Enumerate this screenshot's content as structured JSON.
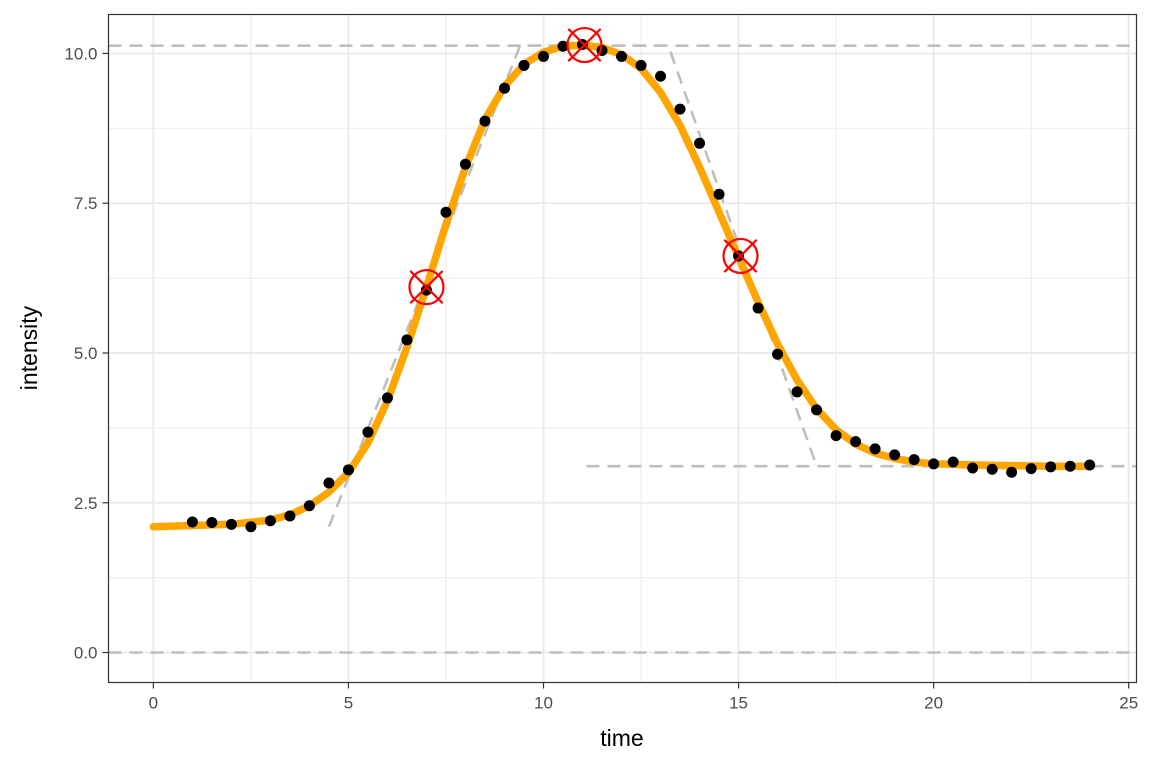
{
  "chart_data": {
    "type": "scatter",
    "title": "",
    "xlabel": "time",
    "ylabel": "intensity",
    "xlim": [
      -1.15,
      25.2
    ],
    "ylim": [
      -0.5,
      10.65
    ],
    "x_ticks": [
      0,
      5,
      10,
      15,
      20,
      25
    ],
    "x_tick_labels": [
      "0",
      "5",
      "10",
      "15",
      "20",
      "25"
    ],
    "y_ticks": [
      0,
      2.5,
      5,
      7.5,
      10
    ],
    "y_tick_labels": [
      "0.0",
      "2.5",
      "5.0",
      "7.5",
      "10.0"
    ],
    "grid": true,
    "legend": "none",
    "colors": {
      "points": "#000000",
      "fit": "#FFA500",
      "guides": "#BEBEBE",
      "markers": "#FF0000",
      "grid": "#EBEBEB",
      "border": "#333333"
    },
    "series": [
      {
        "kind": "points",
        "points": [
          [
            1.0,
            2.18
          ],
          [
            1.5,
            2.17
          ],
          [
            2.0,
            2.14
          ],
          [
            2.5,
            2.1
          ],
          [
            3.0,
            2.2
          ],
          [
            3.5,
            2.28
          ],
          [
            4.0,
            2.45
          ],
          [
            4.5,
            2.83
          ],
          [
            5.0,
            3.05
          ],
          [
            5.5,
            3.68
          ],
          [
            6.0,
            4.25
          ],
          [
            6.5,
            5.22
          ],
          [
            7.0,
            6.05
          ],
          [
            7.5,
            7.35
          ],
          [
            8.0,
            8.15
          ],
          [
            8.5,
            8.87
          ],
          [
            9.0,
            9.42
          ],
          [
            9.5,
            9.8
          ],
          [
            10.0,
            9.95
          ],
          [
            10.5,
            10.12
          ],
          [
            11.0,
            10.15
          ],
          [
            11.5,
            10.05
          ],
          [
            12.0,
            9.95
          ],
          [
            12.5,
            9.8
          ],
          [
            13.0,
            9.62
          ],
          [
            13.5,
            9.07
          ],
          [
            14.0,
            8.5
          ],
          [
            14.5,
            7.65
          ],
          [
            15.0,
            6.62
          ],
          [
            15.5,
            5.75
          ],
          [
            16.0,
            4.98
          ],
          [
            16.5,
            4.35
          ],
          [
            17.0,
            4.05
          ],
          [
            17.5,
            3.62
          ],
          [
            18.0,
            3.52
          ],
          [
            18.5,
            3.4
          ],
          [
            19.0,
            3.3
          ],
          [
            19.5,
            3.22
          ],
          [
            20.0,
            3.15
          ],
          [
            20.5,
            3.18
          ],
          [
            21.0,
            3.08
          ],
          [
            21.5,
            3.06
          ],
          [
            22.0,
            3.01
          ],
          [
            22.5,
            3.07
          ],
          [
            23.0,
            3.1
          ],
          [
            23.5,
            3.11
          ],
          [
            24.0,
            3.13
          ]
        ]
      },
      {
        "kind": "fit-curve",
        "points": [
          [
            0.0,
            2.1
          ],
          [
            1.0,
            2.12
          ],
          [
            2.0,
            2.14
          ],
          [
            3.0,
            2.21
          ],
          [
            3.5,
            2.3
          ],
          [
            4.0,
            2.45
          ],
          [
            4.5,
            2.68
          ],
          [
            5.0,
            3.0
          ],
          [
            5.5,
            3.5
          ],
          [
            6.0,
            4.2
          ],
          [
            6.5,
            5.1
          ],
          [
            7.0,
            6.1
          ],
          [
            7.5,
            7.15
          ],
          [
            8.0,
            8.1
          ],
          [
            8.5,
            8.9
          ],
          [
            9.0,
            9.45
          ],
          [
            9.5,
            9.82
          ],
          [
            10.0,
            10.02
          ],
          [
            10.5,
            10.12
          ],
          [
            11.0,
            10.14
          ],
          [
            11.5,
            10.1
          ],
          [
            12.0,
            9.98
          ],
          [
            12.5,
            9.75
          ],
          [
            13.0,
            9.35
          ],
          [
            13.5,
            8.8
          ],
          [
            14.0,
            8.1
          ],
          [
            14.5,
            7.35
          ],
          [
            15.0,
            6.6
          ],
          [
            15.5,
            5.85
          ],
          [
            16.0,
            5.15
          ],
          [
            16.5,
            4.55
          ],
          [
            17.0,
            4.07
          ],
          [
            17.5,
            3.72
          ],
          [
            18.0,
            3.48
          ],
          [
            18.5,
            3.33
          ],
          [
            19.0,
            3.24
          ],
          [
            19.5,
            3.18
          ],
          [
            20.0,
            3.15
          ],
          [
            21.0,
            3.13
          ],
          [
            22.0,
            3.12
          ],
          [
            23.0,
            3.11
          ],
          [
            24.0,
            3.11
          ]
        ]
      },
      {
        "kind": "guide-dashed",
        "points": [
          [
            -1.15,
            10.13
          ],
          [
            25.2,
            10.13
          ]
        ]
      },
      {
        "kind": "guide-dashed",
        "points": [
          [
            -1.15,
            0.0
          ],
          [
            25.2,
            0.0
          ]
        ]
      },
      {
        "kind": "guide-dashed",
        "points": [
          [
            11.1,
            3.11
          ],
          [
            25.2,
            3.11
          ]
        ]
      },
      {
        "kind": "guide-dashed",
        "points": [
          [
            4.5,
            2.1
          ],
          [
            9.4,
            10.13
          ],
          [
            13.2,
            10.13
          ],
          [
            17.0,
            3.11
          ]
        ]
      }
    ],
    "annotations": [
      {
        "kind": "circle-x",
        "x": 7.0,
        "y": 6.1
      },
      {
        "kind": "circle-x",
        "x": 11.05,
        "y": 10.14
      },
      {
        "kind": "circle-x",
        "x": 15.05,
        "y": 6.62
      }
    ]
  }
}
